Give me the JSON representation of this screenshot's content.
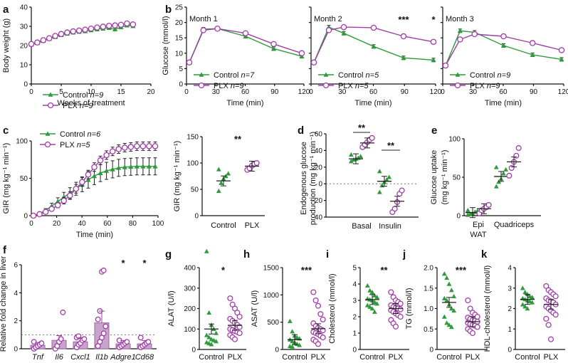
{
  "colors": {
    "control": "#2e9a3a",
    "plx": "#a03ca8",
    "bar_fill": "#c8a4cd",
    "bar_edge": "#9a6aa0",
    "axis": "#111111",
    "dotted": "#777777"
  },
  "chart_data": [
    {
      "panel": "a",
      "type": "line",
      "ylabel": "Body weight (g)",
      "xlabel": "Weeks of treatment",
      "xlim": [
        0,
        20
      ],
      "ylim": [
        0,
        40
      ],
      "xticks": [
        "0",
        "5",
        "10",
        "15",
        "20"
      ],
      "yticks": [
        "0",
        "10",
        "20",
        "30",
        "40"
      ],
      "legend": [
        {
          "series": "control",
          "label": "Control",
          "n": "n=9"
        },
        {
          "series": "plx",
          "label": "PLX",
          "n": "n=9"
        }
      ],
      "series": [
        {
          "name": "control",
          "x": [
            0,
            1,
            2,
            3,
            4,
            5,
            6,
            7,
            8,
            9,
            10,
            11,
            12,
            13,
            14,
            15,
            16,
            17
          ],
          "values": [
            20.5,
            21.3,
            22.5,
            23.5,
            24.5,
            25.5,
            26.2,
            26.8,
            27.2,
            27.5,
            28,
            28.5,
            28.9,
            29.2,
            28.5,
            29.6,
            30.5,
            30.2
          ]
        },
        {
          "name": "plx",
          "x": [
            0,
            1,
            2,
            3,
            4,
            5,
            6,
            7,
            8,
            9,
            10,
            11,
            12,
            13,
            14,
            15,
            16,
            17
          ],
          "values": [
            20.8,
            21.6,
            22.8,
            23.8,
            25,
            26,
            26.8,
            27.4,
            27.8,
            28.3,
            28.8,
            29.4,
            29.8,
            30.3,
            30.5,
            30.8,
            31.5,
            31
          ]
        }
      ]
    },
    {
      "panel": "b",
      "type": "line",
      "ylabel": "Glucose (mmol/l)",
      "ylim": [
        0,
        25
      ],
      "yticks": [
        "0",
        "5",
        "10",
        "15",
        "20",
        "25"
      ],
      "subplots": [
        {
          "title": "Month 1",
          "xlabel": "Time (min)",
          "x": [
            0,
            15,
            30,
            60,
            90,
            120
          ],
          "xticks": [
            "0",
            "30",
            "60",
            "90",
            "120"
          ],
          "legend": [
            {
              "series": "control",
              "label": "Control",
              "n": "n=7"
            },
            {
              "series": "plx",
              "label": "PLX",
              "n": "n=9"
            }
          ],
          "series": [
            {
              "name": "control",
              "values": [
                7,
                17.8,
                18,
                15.5,
                11.5,
                9
              ]
            },
            {
              "name": "plx",
              "values": [
                7,
                17.5,
                18,
                16.5,
                13,
                10
              ]
            }
          ],
          "significance": []
        },
        {
          "title": "Month 2",
          "xlabel": "Time (min)",
          "x": [
            0,
            15,
            30,
            60,
            90,
            120
          ],
          "xticks": [
            "0",
            "30",
            "60",
            "90",
            "120"
          ],
          "legend": [
            {
              "series": "control",
              "label": "Control",
              "n": "n=5"
            },
            {
              "series": "plx",
              "label": "PLX",
              "n": "n=5"
            }
          ],
          "series": [
            {
              "name": "control",
              "values": [
                7,
                18.5,
                16.5,
                12.2,
                8.5,
                7.8
              ]
            },
            {
              "name": "plx",
              "values": [
                7,
                17.5,
                18.5,
                18.3,
                15.5,
                13.7
              ]
            }
          ],
          "significance": [
            {
              "x": 90,
              "label": "***"
            },
            {
              "x": 120,
              "label": "*"
            }
          ]
        },
        {
          "title": "Month 3",
          "xlabel": "Time (min)",
          "x": [
            0,
            15,
            30,
            60,
            90,
            120
          ],
          "xticks": [
            "0",
            "30",
            "60",
            "90",
            "120"
          ],
          "legend": [
            {
              "series": "control",
              "label": "Control",
              "n": "n=9"
            },
            {
              "series": "plx",
              "label": "PLX",
              "n": "n=9"
            }
          ],
          "series": [
            {
              "name": "control",
              "values": [
                6,
                17.3,
                16.8,
                12.5,
                9.5,
                8
              ]
            },
            {
              "name": "plx",
              "values": [
                6,
                14.5,
                16.2,
                15.5,
                13.3,
                11
              ]
            }
          ],
          "significance": []
        }
      ]
    },
    {
      "panel": "c",
      "type": "line",
      "ylabel": "GIR (mg kg⁻¹ min⁻¹)",
      "xlabel": "Time (min)",
      "xlim": [
        0,
        100
      ],
      "ylim": [
        0,
        100
      ],
      "xticks": [
        "0",
        "20",
        "40",
        "60",
        "80",
        "100"
      ],
      "yticks": [
        "0",
        "50",
        "100"
      ],
      "legend": [
        {
          "series": "control",
          "label": "Control",
          "n": "n=6"
        },
        {
          "series": "plx",
          "label": "PLX",
          "n": "n=5"
        }
      ],
      "x": [
        0,
        5,
        10,
        15,
        20,
        25,
        30,
        35,
        40,
        45,
        50,
        55,
        60,
        65,
        70,
        75,
        80,
        85,
        90,
        95,
        100
      ],
      "series": [
        {
          "name": "control",
          "values": [
            0,
            3,
            7,
            13,
            19,
            25,
            30,
            36,
            42,
            48,
            53,
            57,
            60,
            62,
            64,
            65,
            65.5,
            66,
            66,
            66,
            66
          ]
        },
        {
          "name": "plx",
          "values": [
            0,
            2,
            5,
            9,
            14,
            20,
            27,
            36,
            45,
            55,
            65,
            74,
            81,
            86,
            89,
            91,
            92,
            93,
            93,
            93,
            93
          ]
        }
      ]
    },
    {
      "panel": "c-right",
      "type": "scatter",
      "ylabel": "GIR (mg kg⁻¹ min⁻¹)",
      "categories": [
        "Control",
        "PLX"
      ],
      "ylim": [
        0,
        150
      ],
      "yticks": [
        "0",
        "50",
        "100",
        "150"
      ],
      "groups": [
        {
          "name": "control",
          "points": [
            47,
            62,
            70,
            75,
            80,
            88
          ],
          "mean": 66
        },
        {
          "name": "plx",
          "points": [
            87,
            90,
            95,
            98,
            100
          ],
          "mean": 94
        }
      ],
      "significance": [
        {
          "label": "**"
        }
      ]
    },
    {
      "panel": "d",
      "type": "scatter",
      "ylabel": "Endogenous glucose production (mg kg⁻¹ min⁻¹)",
      "categories": [
        "Basal",
        "Insulin"
      ],
      "ylim": [
        -40,
        60
      ],
      "yticks": [
        "-40",
        "-20",
        "0",
        "20",
        "40",
        "60"
      ],
      "groups": [
        {
          "name": "control",
          "category": "Basal",
          "points": [
            27,
            29,
            30,
            31,
            33,
            35
          ],
          "mean": 30
        },
        {
          "name": "plx",
          "category": "Basal",
          "points": [
            44,
            47,
            50,
            53,
            55
          ],
          "mean": 49
        },
        {
          "name": "control",
          "category": "Insulin",
          "points": [
            -10,
            -2,
            2,
            5,
            8,
            15
          ],
          "mean": 3
        },
        {
          "name": "plx",
          "category": "Insulin",
          "points": [
            -34,
            -30,
            -22,
            -12,
            -8
          ],
          "mean": -21
        }
      ],
      "significance": [
        {
          "category": "Basal",
          "label": "**"
        },
        {
          "category": "Insulin",
          "label": "**"
        }
      ]
    },
    {
      "panel": "e",
      "type": "scatter",
      "ylabel": "Glucose uptake (mg kg⁻¹ min⁻¹)",
      "categories": [
        "Epi WAT",
        "Quadriceps"
      ],
      "category_lines": [
        [
          "Epi",
          "WAT"
        ],
        [
          "Quadriceps"
        ]
      ],
      "ylim": [
        0,
        100
      ],
      "yticks": [
        "0",
        "50",
        "100"
      ],
      "groups": [
        {
          "name": "control",
          "category": "Epi WAT",
          "points": [
            1,
            2,
            3,
            5,
            6,
            7
          ],
          "mean": 4
        },
        {
          "name": "plx",
          "category": "Epi WAT",
          "points": [
            3,
            7,
            9,
            11,
            14
          ],
          "mean": 9
        },
        {
          "name": "control",
          "category": "Quadriceps",
          "points": [
            38,
            44,
            48,
            55,
            60,
            63
          ],
          "mean": 51
        },
        {
          "name": "plx",
          "category": "Quadriceps",
          "points": [
            52,
            62,
            70,
            78,
            88
          ],
          "mean": 70
        }
      ]
    },
    {
      "panel": "f",
      "type": "bar",
      "ylabel": "Relative fold change in liver",
      "categories": [
        "Tnf",
        "Il6",
        "Cxcl1",
        "Il1b",
        "Adgre1",
        "Cd68"
      ],
      "ylim": [
        0,
        6
      ],
      "yticks": [
        "0",
        "2",
        "4",
        "6"
      ],
      "reference_line": 1,
      "values": [
        0.25,
        0.6,
        0.5,
        1.85,
        0.35,
        0.35
      ],
      "points": [
        [
          0,
          0.1,
          0.2,
          0.3,
          0.4,
          0.5
        ],
        [
          0,
          0.2,
          0.5,
          0.7,
          2.6
        ],
        [
          0.1,
          0.3,
          0.4,
          0.6,
          0.7,
          0.8,
          0.9
        ],
        [
          0.2,
          0.5,
          0.8,
          1.1,
          1.6,
          2.1,
          2.7,
          5.5,
          5.6
        ],
        [
          0.1,
          0.2,
          0.3,
          0.4,
          0.5,
          0.6
        ],
        [
          0.1,
          0.2,
          0.3,
          0.4,
          0.5,
          0.8
        ]
      ],
      "significance": [
        {
          "category": "Adgre1",
          "label": "*"
        },
        {
          "category": "Cd68",
          "label": "*"
        }
      ]
    },
    {
      "panel": "g",
      "type": "scatter",
      "ylabel": "ALAT (U/l)",
      "categories": [
        "Control",
        "PLX"
      ],
      "ylim": [
        0,
        400
      ],
      "yticks": [
        "0",
        "100",
        "200",
        "300",
        "400"
      ],
      "groups": [
        {
          "name": "control",
          "points": [
            480,
            180,
            120,
            100,
            80,
            70,
            60,
            50,
            45,
            40,
            35,
            30,
            25
          ],
          "mean": 100
        },
        {
          "name": "plx",
          "points": [
            250,
            220,
            200,
            180,
            160,
            150,
            140,
            130,
            120,
            110,
            100,
            95,
            90,
            85,
            80,
            70,
            60,
            50
          ],
          "mean": 118
        }
      ],
      "significance": [
        {
          "label": "*"
        }
      ]
    },
    {
      "panel": "h",
      "type": "scatter",
      "ylabel": "ASAT (U/l)",
      "categories": [
        "Control",
        "PLX"
      ],
      "ylim": [
        0,
        1500
      ],
      "yticks": [
        "0",
        "500",
        "1000",
        "1500"
      ],
      "groups": [
        {
          "name": "control",
          "points": [
            520,
            330,
            250,
            220,
            200,
            180,
            150,
            130,
            100,
            80,
            60,
            50
          ],
          "mean": 180
        },
        {
          "name": "plx",
          "points": [
            1050,
            900,
            800,
            650,
            550,
            480,
            430,
            400,
            370,
            350,
            320,
            300,
            280,
            250,
            220,
            180,
            150,
            100
          ],
          "mean": 380
        }
      ],
      "significance": [
        {
          "label": "***"
        }
      ]
    },
    {
      "panel": "i",
      "type": "scatter",
      "ylabel": "Cholesterol (mmol/l)",
      "categories": [
        "Control",
        "PLX"
      ],
      "ylim": [
        0,
        5
      ],
      "yticks": [
        "0",
        "1",
        "2",
        "3",
        "4",
        "5"
      ],
      "groups": [
        {
          "name": "control",
          "points": [
            3.9,
            3.6,
            3.5,
            3.3,
            3.2,
            3.1,
            3.05,
            3.0,
            2.9,
            2.8,
            2.7,
            2.6,
            2.5,
            2.3
          ],
          "mean": 3.05
        },
        {
          "name": "plx",
          "points": [
            3.5,
            3.2,
            3.0,
            2.9,
            2.8,
            2.7,
            2.6,
            2.55,
            2.5,
            2.45,
            2.4,
            2.3,
            2.2,
            2.1,
            2.0,
            1.8,
            1.6,
            1.4
          ],
          "mean": 2.5
        }
      ],
      "significance": [
        {
          "label": "**"
        }
      ]
    },
    {
      "panel": "j",
      "type": "scatter",
      "ylabel": "TG (mmol/l)",
      "categories": [
        "Control",
        "PLX"
      ],
      "ylim": [
        0,
        2
      ],
      "yticks": [
        "0",
        "0.5",
        "1.0",
        "1.5",
        "2.0"
      ],
      "groups": [
        {
          "name": "control",
          "points": [
            1.85,
            1.75,
            1.6,
            1.45,
            1.3,
            1.25,
            1.2,
            1.1,
            1.0,
            0.95,
            0.8,
            0.65,
            0.6,
            0.55
          ],
          "mean": 1.15
        },
        {
          "name": "plx",
          "points": [
            1.2,
            1.0,
            0.9,
            0.85,
            0.8,
            0.78,
            0.75,
            0.72,
            0.7,
            0.68,
            0.65,
            0.62,
            0.6,
            0.58,
            0.55,
            0.5,
            0.45,
            0.4
          ],
          "mean": 0.68
        }
      ],
      "significance": [
        {
          "label": "***"
        }
      ]
    },
    {
      "panel": "k",
      "type": "scatter",
      "ylabel": "HDL-cholesterol (mmol/l)",
      "categories": [
        "Control",
        "PLX"
      ],
      "ylim": [
        0,
        4
      ],
      "yticks": [
        "0",
        "1",
        "2",
        "3",
        "4"
      ],
      "groups": [
        {
          "name": "control",
          "points": [
            3.0,
            2.8,
            2.7,
            2.6,
            2.55,
            2.5,
            2.45,
            2.4,
            2.35,
            2.3,
            2.2,
            2.1,
            2.0
          ],
          "mean": 2.45
        },
        {
          "name": "plx",
          "points": [
            3.1,
            2.9,
            2.8,
            2.7,
            2.6,
            2.5,
            2.4,
            2.35,
            2.3,
            2.2,
            2.1,
            2.0,
            1.9,
            1.8,
            1.7,
            1.5,
            1.2,
            0.5
          ],
          "mean": 2.2
        }
      ]
    }
  ]
}
